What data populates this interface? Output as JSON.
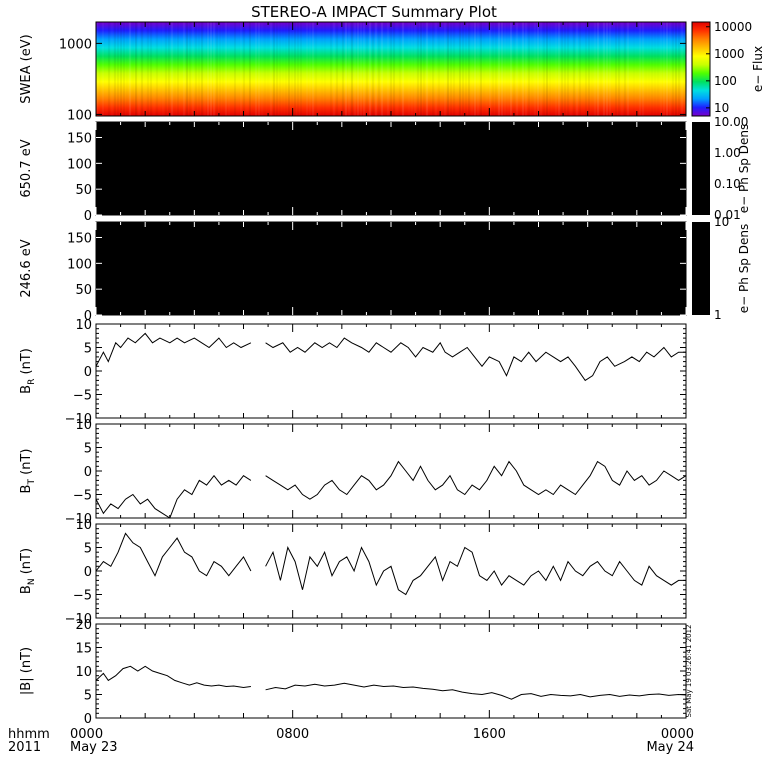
{
  "figure": {
    "title": "STEREO-A IMPACT Summary Plot",
    "stamp": "Sat May 19 03:26:41 2012",
    "time_axis": {
      "row1_label": "hhmm",
      "row2_label": "2011",
      "ticks": [
        {
          "hour": 0,
          "hhmm": "0000",
          "date": "May 23"
        },
        {
          "hour": 8,
          "hhmm": "0800",
          "date": ""
        },
        {
          "hour": 16,
          "hhmm": "1600",
          "date": ""
        },
        {
          "hour": 24,
          "hhmm": "0000",
          "date": "May 24"
        }
      ],
      "range_hours": [
        0,
        24
      ]
    }
  },
  "chart_data": [
    {
      "id": "swea",
      "type": "heatmap",
      "ylabel": "SWEA (eV)",
      "yscale": "log",
      "ylim": [
        95,
        2000
      ],
      "yticks": [
        {
          "v": 100,
          "label": "100"
        },
        {
          "v": 1000,
          "label": "1000"
        }
      ],
      "colorbar": {
        "label": "e− Flux",
        "scale": "log",
        "range": [
          5,
          15000
        ],
        "ticks": [
          {
            "v": 10,
            "label": "10"
          },
          {
            "v": 100,
            "label": "100"
          },
          {
            "v": 1000,
            "label": "1000"
          },
          {
            "v": 10000,
            "label": "10000"
          }
        ]
      },
      "colors": [
        "#7a00c8",
        "#1e1eff",
        "#00a0ff",
        "#00e0e0",
        "#00e060",
        "#50ff00",
        "#c8ff00",
        "#ffff00",
        "#ffc000",
        "#ff8000",
        "#ff3000",
        "#e00000"
      ]
    },
    {
      "id": "pad650",
      "type": "heatmap",
      "ylabel": "650.7 eV",
      "ylim": [
        0,
        180
      ],
      "yticks": [
        {
          "v": 0,
          "label": "0"
        },
        {
          "v": 50,
          "label": "50"
        },
        {
          "v": 100,
          "label": "100"
        },
        {
          "v": 150,
          "label": "150"
        }
      ],
      "fill": "#000000",
      "colorbar": {
        "label": "e− Ph Sp Dens",
        "ticks": [
          {
            "frac": 1.0,
            "label": "10.00"
          },
          {
            "frac": 0.667,
            "label": "1.00"
          },
          {
            "frac": 0.333,
            "label": "0.10"
          },
          {
            "frac": 0.0,
            "label": "0.01"
          }
        ]
      }
    },
    {
      "id": "pad246",
      "type": "heatmap",
      "ylabel": "246.6 eV",
      "ylim": [
        0,
        180
      ],
      "yticks": [
        {
          "v": 0,
          "label": "0"
        },
        {
          "v": 50,
          "label": "50"
        },
        {
          "v": 100,
          "label": "100"
        },
        {
          "v": 150,
          "label": "150"
        }
      ],
      "fill": "#000000",
      "colorbar": {
        "label": "e− Ph Sp Dens",
        "ticks": [
          {
            "frac": 1.0,
            "label": "10"
          },
          {
            "frac": 0.0,
            "label": "1"
          }
        ]
      }
    },
    {
      "id": "br",
      "type": "line",
      "ylabel_main": "B",
      "ylabel_sub": "R",
      "ylabel_unit": "(nT)",
      "ylim": [
        -10,
        10
      ],
      "yticks": [
        {
          "v": -10,
          "label": "−10"
        },
        {
          "v": -5,
          "label": "−5"
        },
        {
          "v": 0,
          "label": "0"
        },
        {
          "v": 5,
          "label": "5"
        },
        {
          "v": 10,
          "label": "10"
        }
      ],
      "x": [
        0,
        0.3,
        0.5,
        0.8,
        1.0,
        1.3,
        1.6,
        2.0,
        2.3,
        2.6,
        3.0,
        3.3,
        3.6,
        4.0,
        4.3,
        4.6,
        5.0,
        5.3,
        5.6,
        5.9,
        6.3,
        null,
        6.9,
        7.2,
        7.6,
        7.9,
        8.2,
        8.5,
        8.9,
        9.2,
        9.5,
        9.8,
        10.1,
        10.4,
        10.8,
        11.1,
        11.4,
        11.7,
        12.0,
        12.4,
        12.7,
        13.0,
        13.3,
        13.7,
        14.0,
        14.2,
        14.5,
        14.8,
        15.1,
        15.4,
        15.7,
        16.0,
        16.4,
        16.7,
        17.0,
        17.3,
        17.6,
        17.9,
        18.3,
        18.6,
        18.9,
        19.2,
        19.5,
        19.9,
        20.2,
        20.5,
        20.8,
        21.1,
        21.5,
        21.8,
        22.1,
        22.4,
        22.7,
        23.1,
        23.4,
        23.7,
        24.0
      ],
      "y": [
        1,
        4,
        2,
        6,
        5,
        7,
        6,
        8,
        6,
        7,
        6,
        7,
        6,
        7,
        6,
        5,
        7,
        5,
        6,
        5,
        6,
        null,
        6,
        5,
        6,
        4,
        5,
        4,
        6,
        5,
        6,
        5,
        7,
        6,
        5,
        4,
        6,
        5,
        4,
        6,
        5,
        3,
        5,
        4,
        6,
        4,
        3,
        4,
        5,
        3,
        1,
        3,
        2,
        -1,
        3,
        2,
        4,
        2,
        4,
        3,
        2,
        3,
        1,
        -2,
        -1,
        2,
        3,
        1,
        2,
        3,
        2,
        4,
        3,
        5,
        3,
        4,
        4
      ],
      "gaps": true
    },
    {
      "id": "bt",
      "type": "line",
      "ylabel_main": "B",
      "ylabel_sub": "T",
      "ylabel_unit": "(nT)",
      "ylim": [
        -10,
        10
      ],
      "yticks": [
        {
          "v": -10,
          "label": "−10"
        },
        {
          "v": -5,
          "label": "−5"
        },
        {
          "v": 0,
          "label": "0"
        },
        {
          "v": 5,
          "label": "5"
        },
        {
          "v": 10,
          "label": "10"
        }
      ],
      "x": [
        0,
        0.3,
        0.6,
        0.9,
        1.2,
        1.5,
        1.8,
        2.1,
        2.4,
        2.7,
        3.0,
        3.3,
        3.6,
        3.9,
        4.2,
        4.5,
        4.8,
        5.1,
        5.4,
        5.7,
        6.0,
        6.3,
        null,
        6.9,
        7.2,
        7.5,
        7.8,
        8.1,
        8.4,
        8.7,
        9.0,
        9.3,
        9.6,
        9.9,
        10.2,
        10.5,
        10.8,
        11.1,
        11.4,
        11.7,
        12.0,
        12.3,
        12.6,
        12.9,
        13.2,
        13.5,
        13.8,
        14.1,
        14.4,
        14.7,
        15.0,
        15.3,
        15.6,
        15.9,
        16.2,
        16.5,
        16.8,
        17.1,
        17.4,
        17.7,
        18.0,
        18.3,
        18.6,
        18.9,
        19.2,
        19.5,
        19.8,
        20.1,
        20.4,
        20.7,
        21.0,
        21.3,
        21.6,
        21.9,
        22.2,
        22.5,
        22.8,
        23.1,
        23.4,
        23.7,
        24.0
      ],
      "y": [
        -6,
        -9,
        -7,
        -8,
        -6,
        -5,
        -7,
        -6,
        -8,
        -9,
        -10,
        -6,
        -4,
        -5,
        -2,
        -3,
        -1,
        -3,
        -2,
        -3,
        -1,
        -2,
        null,
        -1,
        -2,
        -3,
        -4,
        -3,
        -5,
        -6,
        -5,
        -3,
        -2,
        -4,
        -5,
        -3,
        -1,
        -2,
        -4,
        -3,
        -1,
        2,
        0,
        -2,
        1,
        -2,
        -4,
        -3,
        -1,
        -4,
        -5,
        -3,
        -4,
        -2,
        1,
        -1,
        2,
        0,
        -3,
        -4,
        -5,
        -4,
        -5,
        -3,
        -4,
        -5,
        -3,
        -1,
        2,
        1,
        -2,
        -3,
        0,
        -2,
        -1,
        -3,
        -2,
        0,
        -1,
        -2,
        -1
      ],
      "gaps": true
    },
    {
      "id": "bn",
      "type": "line",
      "ylabel_main": "B",
      "ylabel_sub": "N",
      "ylabel_unit": "(nT)",
      "ylim": [
        -10,
        10
      ],
      "yticks": [
        {
          "v": -10,
          "label": "−10"
        },
        {
          "v": -5,
          "label": "−5"
        },
        {
          "v": 0,
          "label": "0"
        },
        {
          "v": 5,
          "label": "5"
        },
        {
          "v": 10,
          "label": "10"
        }
      ],
      "x": [
        0,
        0.3,
        0.6,
        0.9,
        1.2,
        1.5,
        1.8,
        2.1,
        2.4,
        2.7,
        3.0,
        3.3,
        3.6,
        3.9,
        4.2,
        4.5,
        4.8,
        5.1,
        5.4,
        5.7,
        6.0,
        6.3,
        null,
        6.9,
        7.2,
        7.5,
        7.8,
        8.1,
        8.4,
        8.7,
        9.0,
        9.3,
        9.6,
        9.9,
        10.2,
        10.5,
        10.8,
        11.1,
        11.4,
        11.7,
        12.0,
        12.3,
        12.6,
        12.9,
        13.2,
        13.5,
        13.8,
        14.1,
        14.4,
        14.7,
        15.0,
        15.3,
        15.6,
        15.9,
        16.2,
        16.5,
        16.8,
        17.1,
        17.4,
        17.7,
        18.0,
        18.3,
        18.6,
        18.9,
        19.2,
        19.5,
        19.8,
        20.1,
        20.4,
        20.7,
        21.0,
        21.3,
        21.6,
        21.9,
        22.2,
        22.5,
        22.8,
        23.1,
        23.4,
        23.7,
        24.0
      ],
      "y": [
        0,
        2,
        1,
        4,
        8,
        6,
        5,
        2,
        -1,
        3,
        5,
        7,
        4,
        3,
        0,
        -1,
        2,
        1,
        -1,
        1,
        3,
        0,
        null,
        1,
        4,
        -2,
        5,
        2,
        -4,
        3,
        1,
        4,
        -1,
        2,
        3,
        0,
        5,
        2,
        -3,
        0,
        1,
        -4,
        -5,
        -2,
        -1,
        1,
        3,
        -2,
        2,
        1,
        5,
        4,
        -1,
        -2,
        0,
        -3,
        -1,
        -2,
        -3,
        -1,
        0,
        -2,
        1,
        -2,
        2,
        0,
        -1,
        1,
        2,
        0,
        -1,
        2,
        0,
        -2,
        -3,
        1,
        -1,
        -2,
        -3,
        -2,
        -2
      ],
      "gaps": true
    },
    {
      "id": "bmag",
      "type": "line",
      "ylabel_main": "|B|",
      "ylabel_sub": "",
      "ylabel_unit": "(nT)",
      "ylim": [
        0,
        20
      ],
      "yticks": [
        {
          "v": 0,
          "label": "0"
        },
        {
          "v": 5,
          "label": "5"
        },
        {
          "v": 10,
          "label": "10"
        },
        {
          "v": 15,
          "label": "15"
        },
        {
          "v": 20,
          "label": "20"
        }
      ],
      "x": [
        0,
        0.3,
        0.5,
        0.8,
        1.1,
        1.4,
        1.7,
        2.0,
        2.3,
        2.6,
        2.9,
        3.2,
        3.5,
        3.8,
        4.1,
        4.4,
        4.7,
        5.0,
        5.3,
        5.6,
        6.0,
        6.3,
        null,
        6.9,
        7.3,
        7.7,
        8.1,
        8.5,
        8.9,
        9.3,
        9.7,
        10.1,
        10.5,
        10.9,
        11.3,
        11.7,
        12.1,
        12.5,
        12.9,
        13.3,
        13.7,
        14.1,
        14.5,
        14.9,
        15.3,
        15.7,
        16.1,
        16.5,
        16.9,
        17.3,
        17.7,
        18.1,
        18.5,
        18.9,
        19.3,
        19.7,
        20.1,
        20.5,
        20.9,
        21.3,
        21.7,
        22.1,
        22.5,
        22.9,
        23.3,
        23.7,
        24.0
      ],
      "y": [
        8,
        9.5,
        8,
        9,
        10.5,
        11,
        10,
        11,
        10,
        9.5,
        9,
        8,
        7.5,
        7,
        7.5,
        7,
        6.8,
        7,
        6.7,
        6.8,
        6.5,
        6.7,
        null,
        6,
        6.5,
        6.2,
        7,
        6.8,
        7.2,
        6.8,
        7,
        7.4,
        7,
        6.6,
        7,
        6.7,
        6.8,
        6.5,
        6.6,
        6.3,
        6.1,
        5.8,
        6,
        5.5,
        5.2,
        5,
        5.4,
        4.8,
        4,
        5,
        5.2,
        4.6,
        5,
        4.8,
        4.7,
        5,
        4.5,
        4.8,
        5,
        4.6,
        4.9,
        4.7,
        5,
        5.1,
        4.8,
        5,
        4.9
      ],
      "gaps": true
    }
  ]
}
